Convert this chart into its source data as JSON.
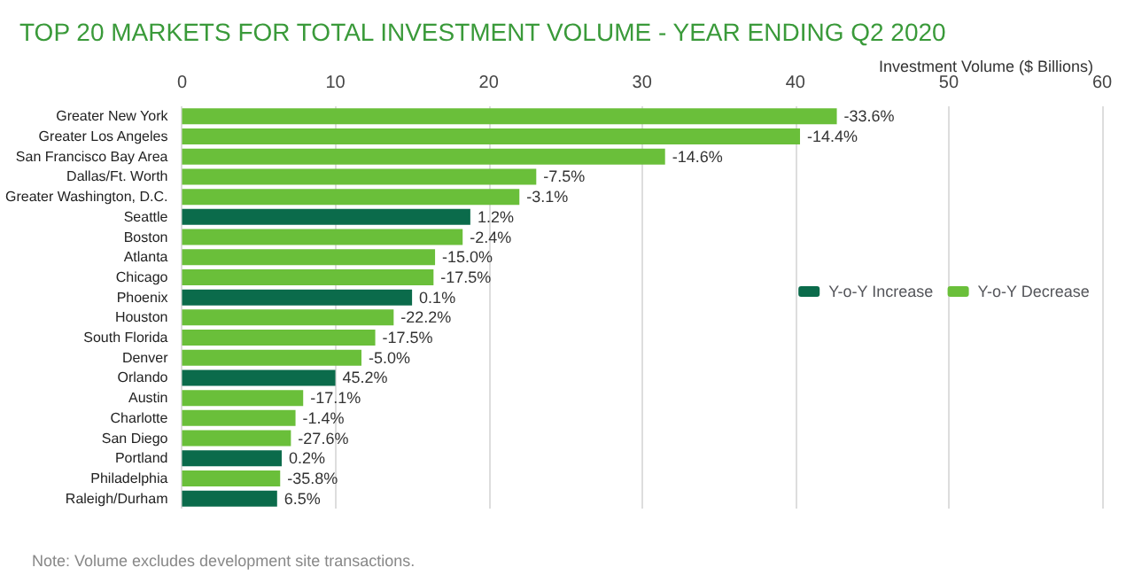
{
  "chart_data": {
    "type": "bar",
    "orientation": "horizontal",
    "stacked": true,
    "title": "TOP 20 MARKETS FOR TOTAL INVESTMENT VOLUME - YEAR ENDING Q2 2020",
    "xlabel": "Investment Volume ($ Billions)",
    "categories": [
      "Greater New York",
      "Greater Los Angeles",
      "San Francisco Bay Area",
      "Dallas/Ft. Worth",
      "Greater Washington, D.C.",
      "Seattle",
      "Boston",
      "Atlanta",
      "Chicago",
      "Phoenix",
      "Houston",
      "South Florida",
      "Denver",
      "Orlando",
      "Austin",
      "Charlotte",
      "San Diego",
      "Portland",
      "Philadelphia",
      "Raleigh/Durham"
    ],
    "series": [
      {
        "name": "Y-o-Y Increase",
        "color": "#0b6b4b",
        "values": [
          null,
          null,
          null,
          null,
          null,
          18.8,
          null,
          null,
          null,
          15.0,
          null,
          null,
          null,
          10.0,
          null,
          null,
          null,
          6.5,
          null,
          6.2
        ]
      },
      {
        "name": "Y-o-Y Decrease",
        "color": "#6abf3a",
        "values": [
          42.7,
          40.3,
          31.5,
          23.1,
          22.0,
          null,
          18.3,
          16.5,
          16.4,
          null,
          13.8,
          12.6,
          11.7,
          null,
          7.9,
          7.4,
          7.1,
          null,
          6.4,
          null
        ]
      }
    ],
    "xlim": [
      0,
      60
    ],
    "xticks": [
      0,
      10,
      20,
      30,
      40,
      50,
      60
    ],
    "grid": "x",
    "legend": "right",
    "annotations": [
      "Note: Volume excludes development site transactions.",
      {
        "text": "-33.6%",
        "x": 42.7,
        "y": "Greater New York"
      },
      {
        "text": "-14.4%",
        "x": 40.3,
        "y": "Greater Los Angeles"
      },
      {
        "text": "-14.6%",
        "x": 31.5,
        "y": "San Francisco Bay Area"
      },
      {
        "text": "-7.5%",
        "x": 23.1,
        "y": "Dallas/Ft. Worth"
      },
      {
        "text": "-3.1%",
        "x": 22.0,
        "y": "Greater Washington, D.C."
      },
      {
        "text": "1.2%",
        "x": 18.8,
        "y": "Seattle"
      },
      {
        "text": "-2.4%",
        "x": 18.3,
        "y": "Boston"
      },
      {
        "text": "-15.0%",
        "x": 16.5,
        "y": "Atlanta"
      },
      {
        "text": "-17.5%",
        "x": 16.4,
        "y": "Chicago"
      },
      {
        "text": "0.1%",
        "x": 15.0,
        "y": "Phoenix"
      },
      {
        "text": "-22.2%",
        "x": 13.8,
        "y": "Houston"
      },
      {
        "text": "-17.5%",
        "x": 12.6,
        "y": "South Florida"
      },
      {
        "text": "-5.0%",
        "x": 11.7,
        "y": "Denver"
      },
      {
        "text": "45.2%",
        "x": 10.0,
        "y": "Orlando"
      },
      {
        "text": "-17.1%",
        "x": 7.9,
        "y": "Austin"
      },
      {
        "text": "-1.4%",
        "x": 7.4,
        "y": "Charlotte"
      },
      {
        "text": "-27.6%",
        "x": 7.1,
        "y": "San Diego"
      },
      {
        "text": "0.2%",
        "x": 6.5,
        "y": "Portland"
      },
      {
        "text": "-35.8%",
        "x": 6.4,
        "y": "Philadelphia"
      },
      {
        "text": "6.5%",
        "x": 6.2,
        "y": "Raleigh/Durham"
      }
    ]
  }
}
